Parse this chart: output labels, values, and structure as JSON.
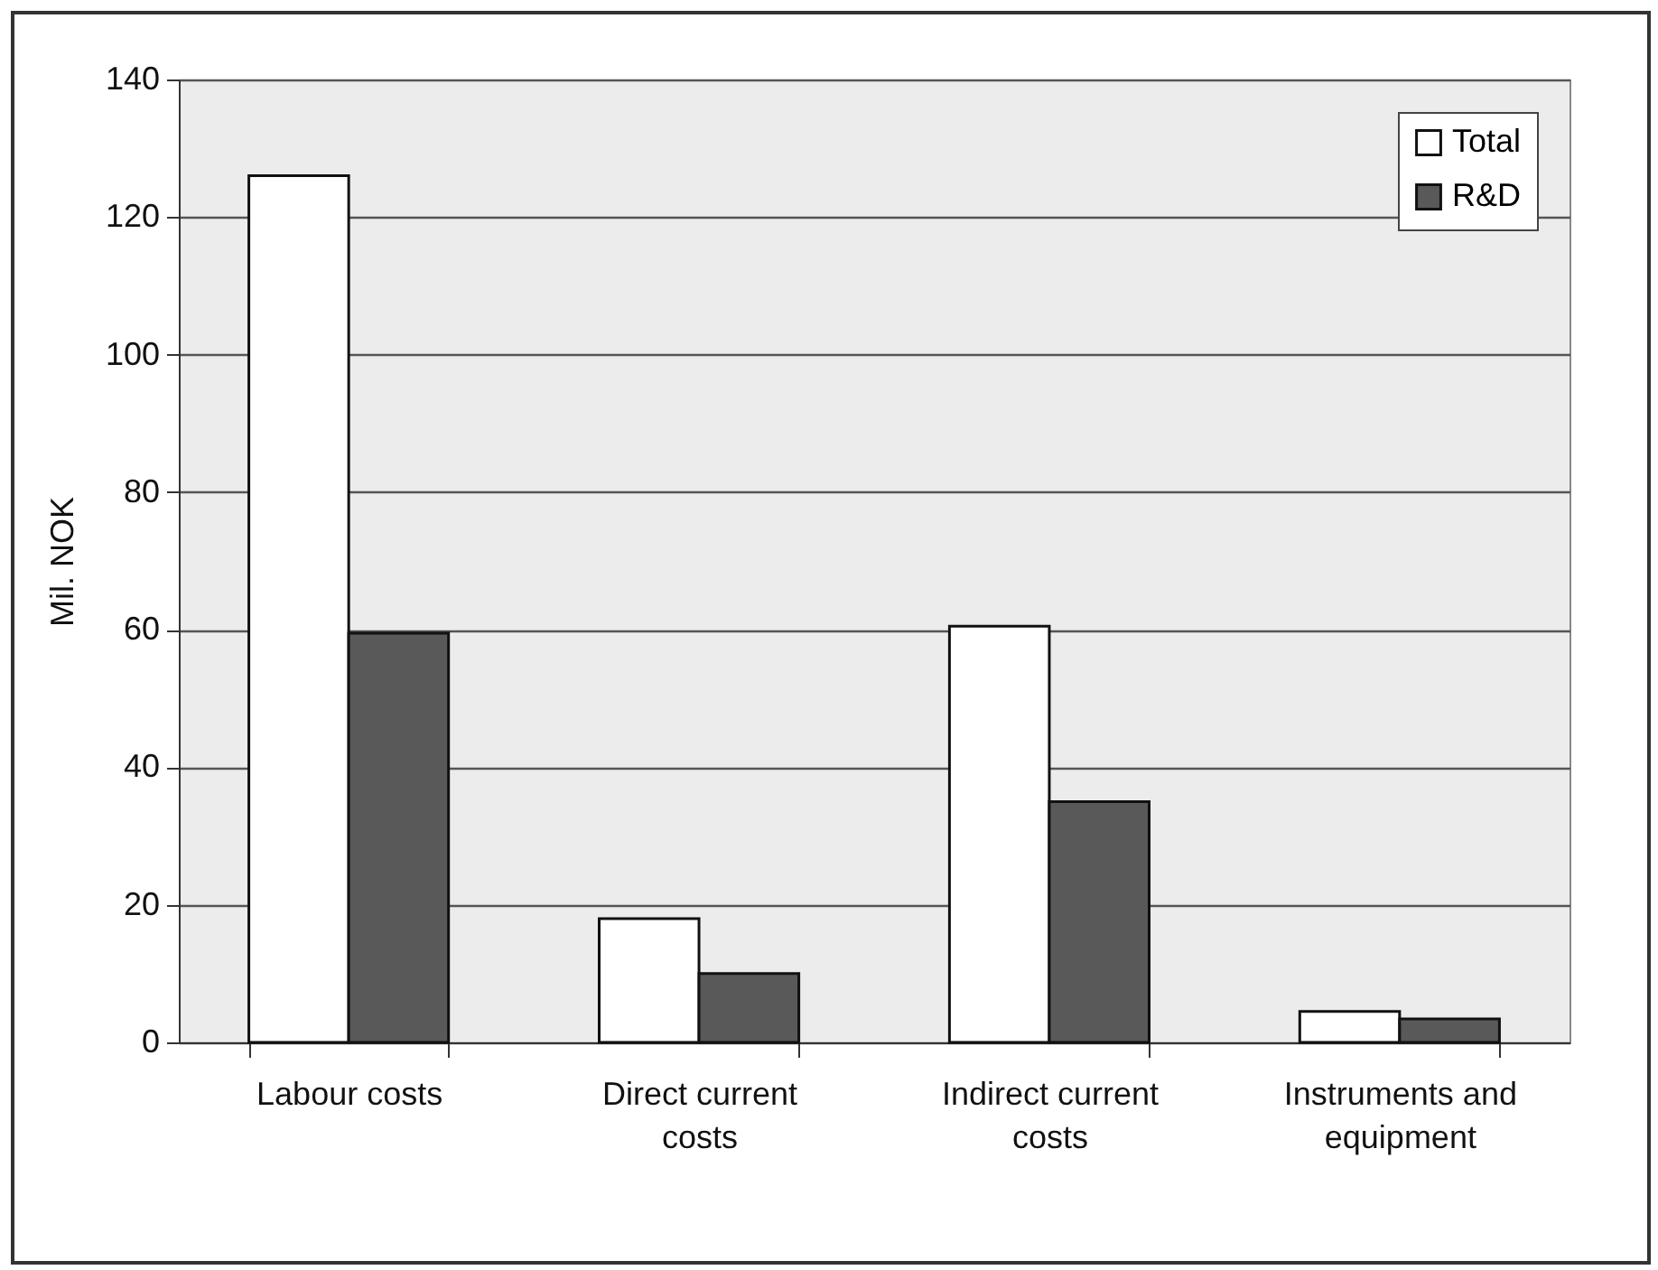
{
  "chart_data": {
    "type": "bar",
    "ylabel": "Mil. NOK",
    "categories": [
      "Labour costs",
      "Direct current costs",
      "Indirect current costs",
      "Instruments and equipment"
    ],
    "series": [
      {
        "name": "Total",
        "color": "#ffffff",
        "values": [
          126,
          18,
          60.5,
          4.5
        ]
      },
      {
        "name": "R&D",
        "color": "#595959",
        "values": [
          59.5,
          10,
          35,
          3.4
        ]
      }
    ],
    "ylim": [
      0,
      140
    ],
    "yticks": [
      0,
      20,
      40,
      60,
      80,
      100,
      120,
      140
    ],
    "grid": "y",
    "legend": "top right"
  }
}
